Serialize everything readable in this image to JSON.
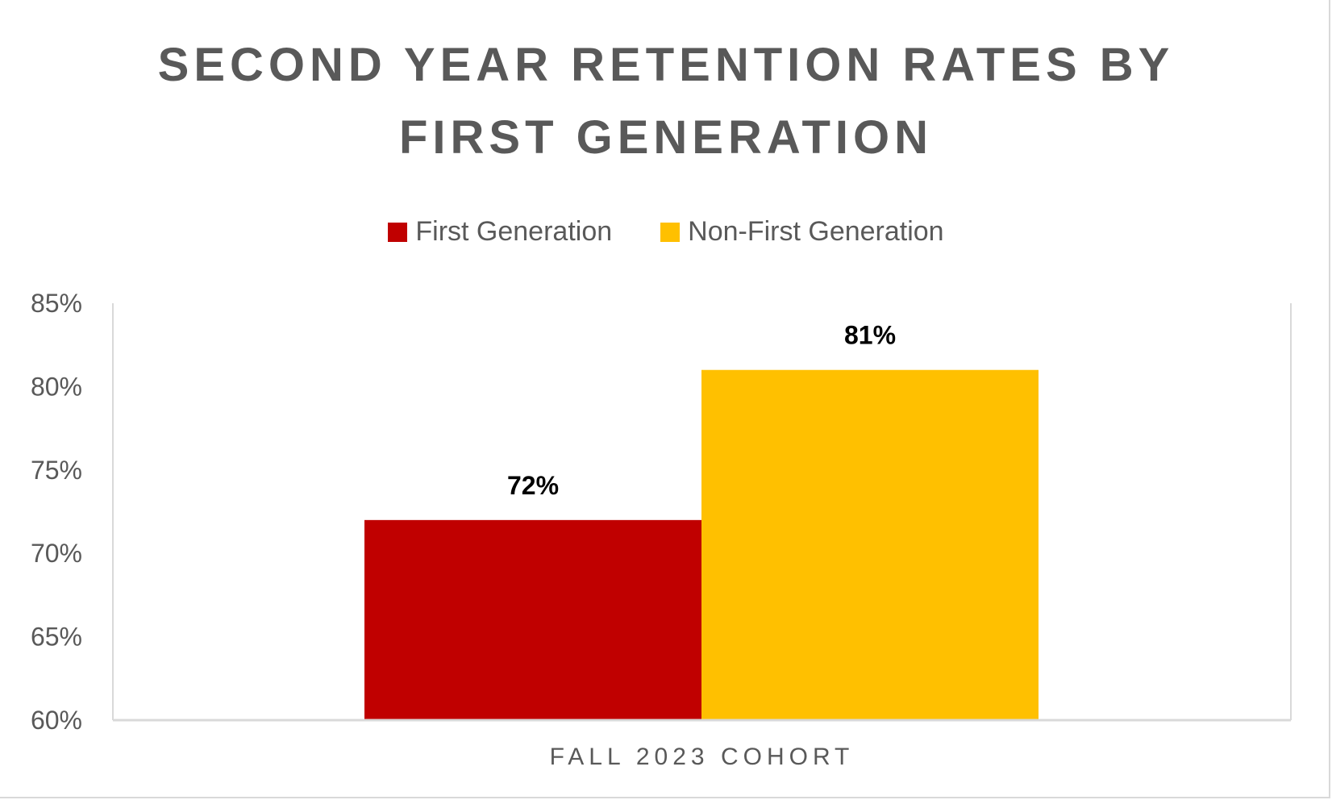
{
  "chart_data": {
    "type": "bar",
    "title": "SECOND YEAR RETENTION RATES BY FIRST GENERATION",
    "title_lines": [
      "SECOND YEAR RETENTION RATES BY",
      "FIRST GENERATION"
    ],
    "categories": [
      "FALL 2023 COHORT"
    ],
    "series": [
      {
        "name": "First Generation",
        "values": [
          72
        ],
        "color": "#C00000",
        "label": "72%"
      },
      {
        "name": "Non-First Generation",
        "values": [
          81
        ],
        "color": "#FFC000",
        "label": "81%"
      }
    ],
    "xlabel": "",
    "ylabel": "",
    "ylim": [
      60,
      85
    ],
    "yticks": [
      "60%",
      "65%",
      "70%",
      "75%",
      "80%",
      "85%"
    ],
    "grid": false,
    "legend_position": "top"
  }
}
